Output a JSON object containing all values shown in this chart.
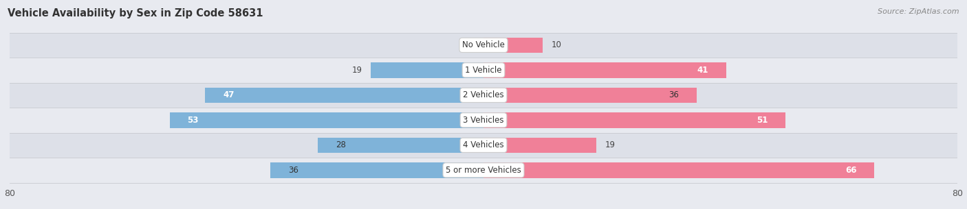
{
  "title": "Vehicle Availability by Sex in Zip Code 58631",
  "source": "Source: ZipAtlas.com",
  "categories": [
    "No Vehicle",
    "1 Vehicle",
    "2 Vehicles",
    "3 Vehicles",
    "4 Vehicles",
    "5 or more Vehicles"
  ],
  "male_values": [
    0,
    19,
    47,
    53,
    28,
    36
  ],
  "female_values": [
    10,
    41,
    36,
    51,
    19,
    66
  ],
  "male_color": "#7fb3d9",
  "female_color": "#f08098",
  "axis_limit": 80,
  "fig_bg": "#e8eaf0",
  "row_colors": [
    "#dde0e8",
    "#e8eaf0"
  ]
}
